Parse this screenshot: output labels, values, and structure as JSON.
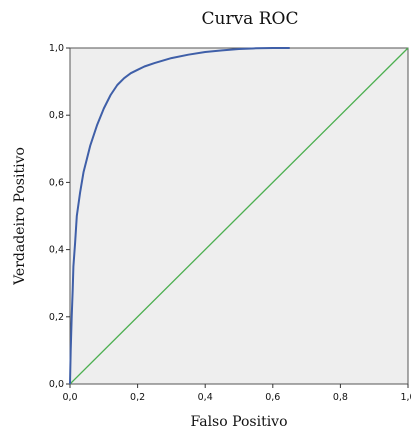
{
  "chart_data": {
    "type": "line",
    "title": "Curva ROC",
    "xlabel": "Falso Positivo",
    "ylabel": "Verdadeiro Positivo",
    "xlim": [
      0,
      1
    ],
    "ylim": [
      0,
      1
    ],
    "x_ticks": [
      "0,0",
      "0,2",
      "0,4",
      "0,6",
      "0,8",
      "1,0"
    ],
    "y_ticks": [
      "0,0",
      "0,2",
      "0,4",
      "0,6",
      "0,8",
      "1,0"
    ],
    "grid": false,
    "plot_background": "#eeeeee",
    "series": [
      {
        "color": "#3f5fa8",
        "x": [
          0,
          0.002,
          0.005,
          0.008,
          0.01,
          0.015,
          0.02,
          0.03,
          0.04,
          0.05,
          0.06,
          0.08,
          0.1,
          0.12,
          0.14,
          0.16,
          0.18,
          0.2,
          0.22,
          0.25,
          0.3,
          0.35,
          0.4,
          0.45,
          0.5,
          0.55,
          0.6,
          0.65
        ],
        "y": [
          0,
          0.1,
          0.2,
          0.28,
          0.35,
          0.42,
          0.5,
          0.57,
          0.63,
          0.67,
          0.71,
          0.77,
          0.82,
          0.86,
          0.89,
          0.91,
          0.925,
          0.935,
          0.945,
          0.955,
          0.97,
          0.98,
          0.988,
          0.993,
          0.997,
          0.999,
          1.0,
          1.0
        ]
      },
      {
        "color": "#4caf50",
        "x": [
          0,
          1
        ],
        "y": [
          0,
          1
        ]
      }
    ]
  }
}
